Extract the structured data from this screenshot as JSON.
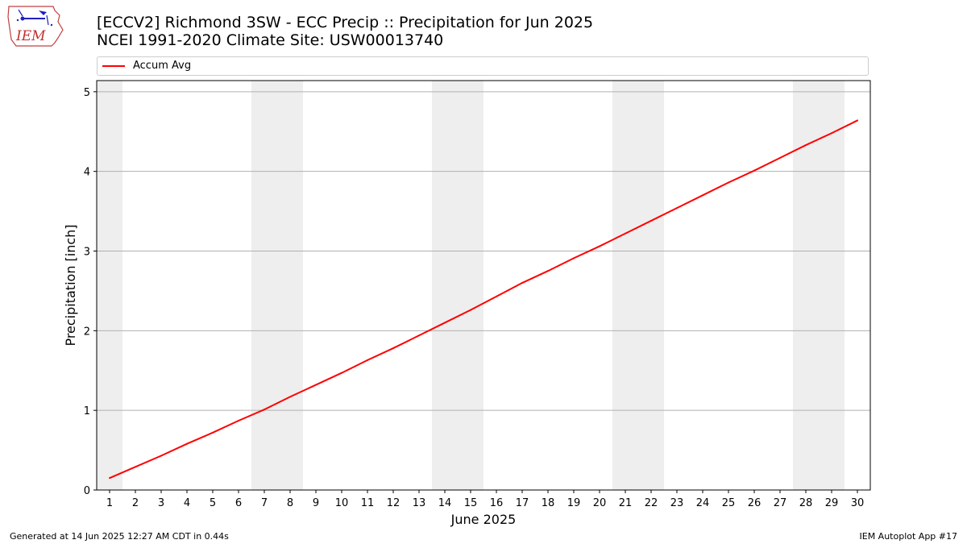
{
  "header": {
    "logo_text": "IEM",
    "title_line1": "[ECCV2] Richmond 3SW - ECC Precip :: Precipitation for Jun 2025",
    "title_line2": "NCEI 1991-2020 Climate Site: USW00013740"
  },
  "footer": {
    "left": "Generated at 14 Jun 2025 12:27 AM CDT in 0.44s",
    "right": "IEM Autoplot App #17"
  },
  "colors": {
    "series": "#ff0000",
    "weekend_shade": "#eeeeee",
    "grid": "#b0b0b0"
  },
  "chart_data": {
    "type": "line",
    "xlabel": "June 2025",
    "ylabel": "Precipitation [inch]",
    "x": [
      1,
      2,
      3,
      4,
      5,
      6,
      7,
      8,
      9,
      10,
      11,
      12,
      13,
      14,
      15,
      16,
      17,
      18,
      19,
      20,
      21,
      22,
      23,
      24,
      25,
      26,
      27,
      28,
      29,
      30
    ],
    "xlim": [
      0.5,
      30.5
    ],
    "ylim": [
      0,
      5.14
    ],
    "yticks": [
      0,
      1,
      2,
      3,
      4,
      5
    ],
    "grid": "horizontal",
    "legend_placement": "top",
    "weekend_days": [
      1,
      7,
      8,
      14,
      15,
      21,
      22,
      28,
      29
    ],
    "series": [
      {
        "name": "Accum Avg",
        "values": [
          0.15,
          0.29,
          0.43,
          0.58,
          0.72,
          0.87,
          1.01,
          1.17,
          1.32,
          1.47,
          1.63,
          1.78,
          1.94,
          2.1,
          2.26,
          2.43,
          2.6,
          2.75,
          2.91,
          3.06,
          3.22,
          3.38,
          3.54,
          3.7,
          3.86,
          4.01,
          4.17,
          4.33,
          4.48,
          4.64
        ]
      }
    ]
  }
}
